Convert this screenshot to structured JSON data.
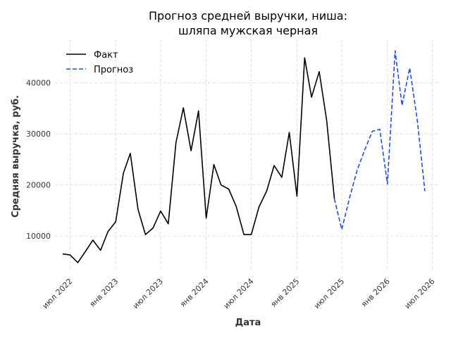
{
  "chart_data": {
    "type": "line",
    "title": "Прогноз средней выручки, ниша:\nшляпа мужская черная",
    "xlabel": "Дата",
    "ylabel": "Средняя выручка, руб.",
    "x_range": [
      "2022-05-01",
      "2026-07-31"
    ],
    "y_range": [
      3000,
      48500
    ],
    "y_ticks": [
      10000,
      20000,
      30000,
      40000
    ],
    "x_ticks": [
      {
        "date": "2022-07-01",
        "label": "июл 2022"
      },
      {
        "date": "2023-01-01",
        "label": "янв 2023"
      },
      {
        "date": "2023-07-01",
        "label": "июл 2023"
      },
      {
        "date": "2024-01-01",
        "label": "янв 2024"
      },
      {
        "date": "2024-07-01",
        "label": "июл 2024"
      },
      {
        "date": "2025-01-01",
        "label": "янв 2025"
      },
      {
        "date": "2025-07-01",
        "label": "июл 2025"
      },
      {
        "date": "2026-01-01",
        "label": "янв 2026"
      },
      {
        "date": "2026-07-01",
        "label": "июл 2026"
      }
    ],
    "grid": true,
    "legend_position": "top-left",
    "series": [
      {
        "name": "Факт",
        "color": "#000000",
        "style": "solid",
        "points": [
          [
            "2022-06-01",
            6500
          ],
          [
            "2022-07-01",
            6300
          ],
          [
            "2022-08-01",
            4800
          ],
          [
            "2022-09-01",
            7000
          ],
          [
            "2022-10-01",
            9200
          ],
          [
            "2022-11-01",
            7200
          ],
          [
            "2022-12-01",
            10900
          ],
          [
            "2023-01-01",
            12800
          ],
          [
            "2023-02-01",
            22300
          ],
          [
            "2023-03-01",
            26200
          ],
          [
            "2023-04-01",
            15200
          ],
          [
            "2023-05-01",
            10300
          ],
          [
            "2023-06-01",
            11600
          ],
          [
            "2023-07-01",
            14900
          ],
          [
            "2023-08-01",
            12400
          ],
          [
            "2023-09-01",
            28300
          ],
          [
            "2023-10-01",
            35100
          ],
          [
            "2023-11-01",
            26700
          ],
          [
            "2023-12-01",
            34500
          ],
          [
            "2024-01-01",
            13500
          ],
          [
            "2024-02-01",
            24000
          ],
          [
            "2024-03-01",
            20000
          ],
          [
            "2024-04-01",
            19200
          ],
          [
            "2024-05-01",
            15800
          ],
          [
            "2024-06-01",
            10300
          ],
          [
            "2024-07-01",
            10300
          ],
          [
            "2024-08-01",
            15700
          ],
          [
            "2024-09-01",
            18800
          ],
          [
            "2024-10-01",
            23800
          ],
          [
            "2024-11-01",
            21500
          ],
          [
            "2024-12-01",
            30300
          ],
          [
            "2025-01-01",
            17800
          ],
          [
            "2025-02-01",
            44900
          ],
          [
            "2025-03-01",
            37200
          ],
          [
            "2025-04-01",
            42200
          ],
          [
            "2025-05-01",
            32600
          ],
          [
            "2025-06-01",
            17300
          ]
        ]
      },
      {
        "name": "Прогноз",
        "color": "#1f4fd8",
        "style": "dashed",
        "points": [
          [
            "2025-06-01",
            17300
          ],
          [
            "2025-07-01",
            11300
          ],
          [
            "2025-08-01",
            17400
          ],
          [
            "2025-09-01",
            22900
          ],
          [
            "2025-10-01",
            26800
          ],
          [
            "2025-11-01",
            30500
          ],
          [
            "2025-12-01",
            30900
          ],
          [
            "2026-01-01",
            20200
          ],
          [
            "2026-02-01",
            46300
          ],
          [
            "2026-03-01",
            35600
          ],
          [
            "2026-04-01",
            42900
          ],
          [
            "2026-05-01",
            32900
          ],
          [
            "2026-06-01",
            18800
          ]
        ]
      }
    ]
  }
}
